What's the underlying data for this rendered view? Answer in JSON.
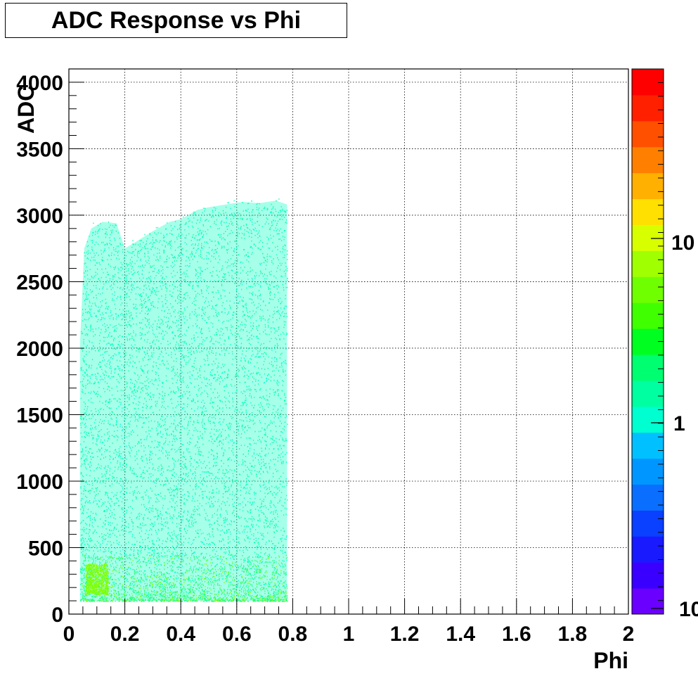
{
  "chart_data": {
    "type": "heatmap",
    "title": "ADC Response vs Phi",
    "xlabel": "Phi",
    "ylabel": "ADC",
    "xlim": [
      0,
      2
    ],
    "ylim": [
      0,
      4100
    ],
    "x_ticks": [
      "0",
      "0.2",
      "0.4",
      "0.6",
      "0.8",
      "1",
      "1.2",
      "1.4",
      "1.6",
      "1.8",
      "2"
    ],
    "y_ticks": [
      "0",
      "500",
      "1000",
      "1500",
      "2000",
      "2500",
      "3000",
      "3500",
      "4000"
    ],
    "grid": true,
    "colorbar": {
      "scale": "log",
      "labels": [
        "10",
        "1",
        "10"
      ],
      "colors": [
        "#6a00ff",
        "#3a00ff",
        "#1a1aff",
        "#0a40ff",
        "#0a6fff",
        "#0096ff",
        "#00c0ff",
        "#00ffd0",
        "#00ffa0",
        "#00ff70",
        "#00ff20",
        "#40ff00",
        "#70ff00",
        "#a0ff00",
        "#d8ff00",
        "#ffe000",
        "#ffb000",
        "#ff8000",
        "#ff5000",
        "#ff2000",
        "#ff0000"
      ]
    },
    "data_region": {
      "phi_range": [
        0.04,
        0.78
      ],
      "adc_range": [
        100,
        3100
      ],
      "dominant_color": "#00ffc0",
      "low_adc_hotspot_color": "#80ff00",
      "upper_edge": [
        {
          "phi": 0.04,
          "adc": 2050
        },
        {
          "phi": 0.055,
          "adc": 2750
        },
        {
          "phi": 0.08,
          "adc": 2900
        },
        {
          "phi": 0.12,
          "adc": 2950
        },
        {
          "phi": 0.17,
          "adc": 2940
        },
        {
          "phi": 0.2,
          "adc": 2750
        },
        {
          "phi": 0.24,
          "adc": 2800
        },
        {
          "phi": 0.3,
          "adc": 2880
        },
        {
          "phi": 0.36,
          "adc": 2950
        },
        {
          "phi": 0.4,
          "adc": 2970
        },
        {
          "phi": 0.46,
          "adc": 3040
        },
        {
          "phi": 0.5,
          "adc": 3060
        },
        {
          "phi": 0.56,
          "adc": 3080
        },
        {
          "phi": 0.62,
          "adc": 3100
        },
        {
          "phi": 0.68,
          "adc": 3090
        },
        {
          "phi": 0.74,
          "adc": 3110
        },
        {
          "phi": 0.78,
          "adc": 3080
        }
      ]
    }
  }
}
